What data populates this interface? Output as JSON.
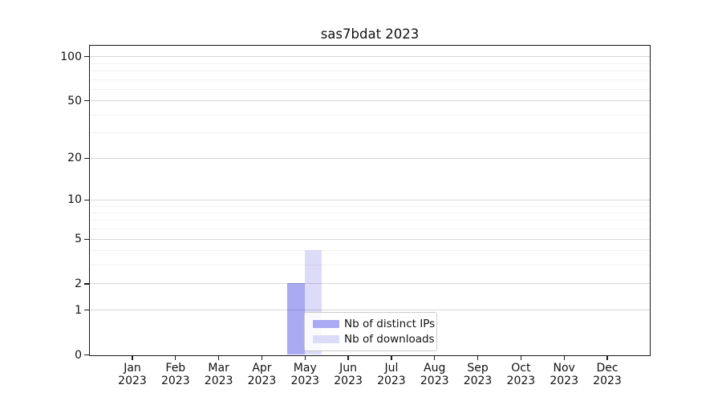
{
  "title": "sas7bdat 2023",
  "chart_data": {
    "type": "bar",
    "title": "sas7bdat 2023",
    "categories": [
      "Jan",
      "Feb",
      "Mar",
      "Apr",
      "May",
      "Jun",
      "Jul",
      "Aug",
      "Sep",
      "Oct",
      "Nov",
      "Dec"
    ],
    "category_year": "2023",
    "series": [
      {
        "name": "Nb of distinct IPs",
        "color": "#aaaaf3",
        "values": [
          0,
          0,
          0,
          0,
          2,
          0,
          0,
          0,
          0,
          0,
          0,
          0
        ]
      },
      {
        "name": "Nb of downloads",
        "color": "#dcdcf8",
        "values": [
          0,
          0,
          0,
          0,
          4,
          0,
          0,
          0,
          0,
          0,
          0,
          0
        ]
      }
    ],
    "yscale": "log1p",
    "ylim": [
      0,
      118
    ],
    "yticks_major": [
      0,
      1,
      2,
      5,
      10,
      20,
      50,
      100
    ],
    "yticks_minor": [
      3,
      4,
      6,
      7,
      8,
      9,
      30,
      40,
      60,
      70,
      80,
      90
    ],
    "grid": true,
    "legend_position": "lower center"
  }
}
